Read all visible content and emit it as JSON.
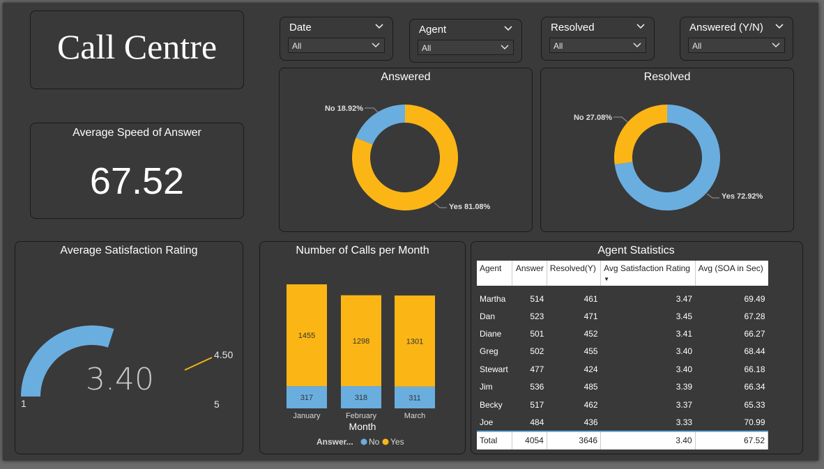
{
  "dashboard": {
    "title": "Call Centre"
  },
  "slicers": [
    {
      "label": "Date",
      "value": "All"
    },
    {
      "label": "Agent",
      "value": "All"
    },
    {
      "label": "Resolved",
      "value": "All"
    },
    {
      "label": "Answered (Y/N)",
      "value": "All"
    }
  ],
  "kpi": {
    "title": "Average Speed of Answer",
    "value": "67.52"
  },
  "gauge": {
    "title": "Average Satisfaction Rating",
    "value": 3.4,
    "value_label": "3.40",
    "min": 1,
    "max": 5,
    "target": 4.5,
    "min_label": "1",
    "max_label": "5",
    "target_label": "4.50",
    "color": "#6aaee0",
    "target_color": "#f5b216"
  },
  "chart_data": [
    {
      "type": "pie",
      "title": "Answered",
      "donut": true,
      "slices": [
        {
          "label": "No 18.92%",
          "value": 18.92,
          "color": "#6aaee0"
        },
        {
          "label": "Yes 81.08%",
          "value": 81.08,
          "color": "#fbb616"
        }
      ]
    },
    {
      "type": "pie",
      "title": "Resolved",
      "donut": true,
      "slices": [
        {
          "label": "No 27.08%",
          "value": 27.08,
          "color": "#fbb616"
        },
        {
          "label": "Yes 72.92%",
          "value": 72.92,
          "color": "#6aaee0"
        }
      ]
    },
    {
      "type": "bar",
      "stacked": true,
      "title": "Number of Calls per Month",
      "xlabel": "Month",
      "categories": [
        "January",
        "February",
        "March"
      ],
      "series": [
        {
          "name": "No",
          "values": [
            317,
            318,
            311
          ],
          "color": "#6aaee0"
        },
        {
          "name": "Yes",
          "values": [
            1455,
            1298,
            1301
          ],
          "color": "#fbb616"
        }
      ],
      "legend_title": "Answer...",
      "legend_position": "bottom"
    }
  ],
  "agent_stats": {
    "title": "Agent Statistics",
    "columns": [
      "Agent",
      "Answer",
      "Resolved(Y)",
      "Avg Satisfaction Rating",
      "Avg (SOA in Sec)"
    ],
    "sort_indicator": "▼",
    "rows": [
      [
        "Martha",
        "514",
        "461",
        "3.47",
        "69.49"
      ],
      [
        "Dan",
        "523",
        "471",
        "3.45",
        "67.28"
      ],
      [
        "Diane",
        "501",
        "452",
        "3.41",
        "66.27"
      ],
      [
        "Greg",
        "502",
        "455",
        "3.40",
        "68.44"
      ],
      [
        "Stewart",
        "477",
        "424",
        "3.40",
        "66.18"
      ],
      [
        "Jim",
        "536",
        "485",
        "3.39",
        "66.34"
      ],
      [
        "Becky",
        "517",
        "462",
        "3.37",
        "65.33"
      ],
      [
        "Joe",
        "484",
        "436",
        "3.33",
        "70.99"
      ]
    ],
    "total": [
      "Total",
      "4054",
      "3646",
      "3.40",
      "67.52"
    ]
  }
}
